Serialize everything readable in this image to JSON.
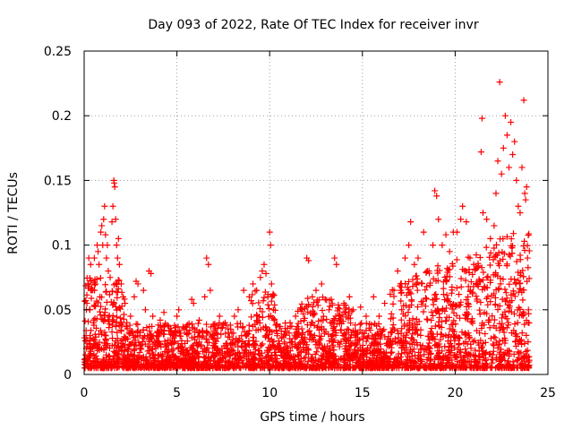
{
  "chart_data": {
    "type": "scatter",
    "title": "Day 093 of 2022, Rate Of TEC Index for receiver invr",
    "xlabel": "GPS time / hours",
    "ylabel": "ROTI / TECUs",
    "xlim": [
      0,
      25
    ],
    "ylim": [
      0,
      0.25
    ],
    "xticks": [
      0,
      5,
      10,
      15,
      20,
      25
    ],
    "yticks": [
      0,
      0.05,
      0.1,
      0.15,
      0.2,
      0.25
    ],
    "xtick_labels": [
      "0",
      "5",
      "10",
      "15",
      "20",
      "25"
    ],
    "ytick_labels": [
      "0",
      "0.05",
      "0.1",
      "0.15",
      "0.2",
      "0.25"
    ],
    "grid": true,
    "marker": "+",
    "color": "#ff0000",
    "series": [
      {
        "points": [
          [
            0.05,
            0.012
          ],
          [
            0.1,
            0.03
          ],
          [
            0.15,
            0.055
          ],
          [
            0.2,
            0.07
          ],
          [
            0.25,
            0.09
          ],
          [
            0.3,
            0.05
          ],
          [
            0.35,
            0.085
          ],
          [
            0.4,
            0.065
          ],
          [
            0.45,
            0.02
          ],
          [
            0.5,
            0.04
          ],
          [
            0.55,
            0.09
          ],
          [
            0.6,
            0.07
          ],
          [
            0.7,
            0.1
          ],
          [
            0.75,
            0.095
          ],
          [
            0.8,
            0.085
          ],
          [
            0.85,
            0.06
          ],
          [
            0.9,
            0.11
          ],
          [
            0.95,
            0.115
          ],
          [
            1.0,
            0.1
          ],
          [
            1.05,
            0.12
          ],
          [
            1.1,
            0.13
          ],
          [
            1.15,
            0.108
          ],
          [
            1.2,
            0.09
          ],
          [
            1.25,
            0.1
          ],
          [
            1.3,
            0.08
          ],
          [
            1.4,
            0.075
          ],
          [
            1.5,
            0.118
          ],
          [
            1.55,
            0.13
          ],
          [
            1.6,
            0.15
          ],
          [
            1.62,
            0.148
          ],
          [
            1.65,
            0.145
          ],
          [
            1.7,
            0.12
          ],
          [
            1.75,
            0.1
          ],
          [
            1.8,
            0.09
          ],
          [
            1.85,
            0.105
          ],
          [
            1.9,
            0.085
          ],
          [
            2.0,
            0.07
          ],
          [
            2.1,
            0.06
          ],
          [
            2.2,
            0.055
          ],
          [
            2.3,
            0.04
          ],
          [
            2.5,
            0.045
          ],
          [
            2.7,
            0.06
          ],
          [
            2.8,
            0.072
          ],
          [
            2.9,
            0.07
          ],
          [
            3.0,
            0.03
          ],
          [
            3.2,
            0.065
          ],
          [
            3.3,
            0.05
          ],
          [
            3.5,
            0.08
          ],
          [
            3.6,
            0.078
          ],
          [
            3.7,
            0.045
          ],
          [
            3.9,
            0.03
          ],
          [
            4.1,
            0.042
          ],
          [
            4.3,
            0.048
          ],
          [
            4.5,
            0.038
          ],
          [
            4.8,
            0.03
          ],
          [
            5.0,
            0.045
          ],
          [
            5.1,
            0.05
          ],
          [
            5.4,
            0.035
          ],
          [
            5.8,
            0.058
          ],
          [
            5.9,
            0.055
          ],
          [
            6.2,
            0.042
          ],
          [
            6.5,
            0.06
          ],
          [
            6.6,
            0.09
          ],
          [
            6.7,
            0.085
          ],
          [
            6.8,
            0.065
          ],
          [
            7.0,
            0.03
          ],
          [
            7.3,
            0.045
          ],
          [
            7.6,
            0.04
          ],
          [
            7.9,
            0.035
          ],
          [
            8.1,
            0.045
          ],
          [
            8.3,
            0.05
          ],
          [
            8.6,
            0.065
          ],
          [
            8.9,
            0.06
          ],
          [
            9.1,
            0.07
          ],
          [
            9.3,
            0.065
          ],
          [
            9.5,
            0.075
          ],
          [
            9.6,
            0.08
          ],
          [
            9.7,
            0.085
          ],
          [
            9.8,
            0.078
          ],
          [
            9.9,
            0.06
          ],
          [
            10.0,
            0.11
          ],
          [
            10.05,
            0.1
          ],
          [
            10.1,
            0.07
          ],
          [
            10.2,
            0.05
          ],
          [
            10.4,
            0.03
          ],
          [
            10.8,
            0.025
          ],
          [
            11.1,
            0.04
          ],
          [
            11.4,
            0.045
          ],
          [
            11.7,
            0.05
          ],
          [
            12.0,
            0.09
          ],
          [
            12.1,
            0.088
          ],
          [
            12.3,
            0.06
          ],
          [
            12.5,
            0.065
          ],
          [
            12.8,
            0.07
          ],
          [
            13.0,
            0.058
          ],
          [
            13.2,
            0.05
          ],
          [
            13.5,
            0.09
          ],
          [
            13.6,
            0.085
          ],
          [
            13.8,
            0.045
          ],
          [
            14.0,
            0.055
          ],
          [
            14.3,
            0.06
          ],
          [
            14.5,
            0.05
          ],
          [
            14.9,
            0.052
          ],
          [
            15.2,
            0.045
          ],
          [
            15.6,
            0.06
          ],
          [
            15.9,
            0.045
          ],
          [
            16.2,
            0.055
          ],
          [
            16.5,
            0.062
          ],
          [
            16.7,
            0.065
          ],
          [
            16.9,
            0.08
          ],
          [
            17.1,
            0.07
          ],
          [
            17.3,
            0.09
          ],
          [
            17.5,
            0.1
          ],
          [
            17.6,
            0.118
          ],
          [
            17.8,
            0.085
          ],
          [
            18.0,
            0.09
          ],
          [
            18.3,
            0.11
          ],
          [
            18.5,
            0.08
          ],
          [
            18.8,
            0.1
          ],
          [
            18.9,
            0.142
          ],
          [
            19.0,
            0.138
          ],
          [
            19.1,
            0.12
          ],
          [
            19.3,
            0.1
          ],
          [
            19.5,
            0.108
          ],
          [
            19.7,
            0.095
          ],
          [
            19.9,
            0.11
          ],
          [
            20.1,
            0.11
          ],
          [
            20.3,
            0.12
          ],
          [
            20.4,
            0.13
          ],
          [
            20.6,
            0.118
          ],
          [
            20.8,
            0.09
          ],
          [
            21.0,
            0.085
          ],
          [
            21.2,
            0.07
          ],
          [
            21.4,
            0.172
          ],
          [
            21.45,
            0.198
          ],
          [
            21.5,
            0.125
          ],
          [
            21.7,
            0.12
          ],
          [
            21.9,
            0.105
          ],
          [
            22.1,
            0.115
          ],
          [
            22.2,
            0.14
          ],
          [
            22.3,
            0.165
          ],
          [
            22.4,
            0.226
          ],
          [
            22.5,
            0.155
          ],
          [
            22.6,
            0.175
          ],
          [
            22.7,
            0.2
          ],
          [
            22.8,
            0.185
          ],
          [
            22.9,
            0.16
          ],
          [
            23.0,
            0.195
          ],
          [
            23.1,
            0.17
          ],
          [
            23.2,
            0.18
          ],
          [
            23.3,
            0.15
          ],
          [
            23.4,
            0.13
          ],
          [
            23.5,
            0.125
          ],
          [
            23.6,
            0.16
          ],
          [
            23.7,
            0.212
          ],
          [
            23.75,
            0.14
          ],
          [
            23.8,
            0.135
          ],
          [
            23.85,
            0.145
          ],
          [
            23.9,
            0.09
          ],
          [
            23.95,
            0.05
          ]
        ]
      }
    ]
  }
}
